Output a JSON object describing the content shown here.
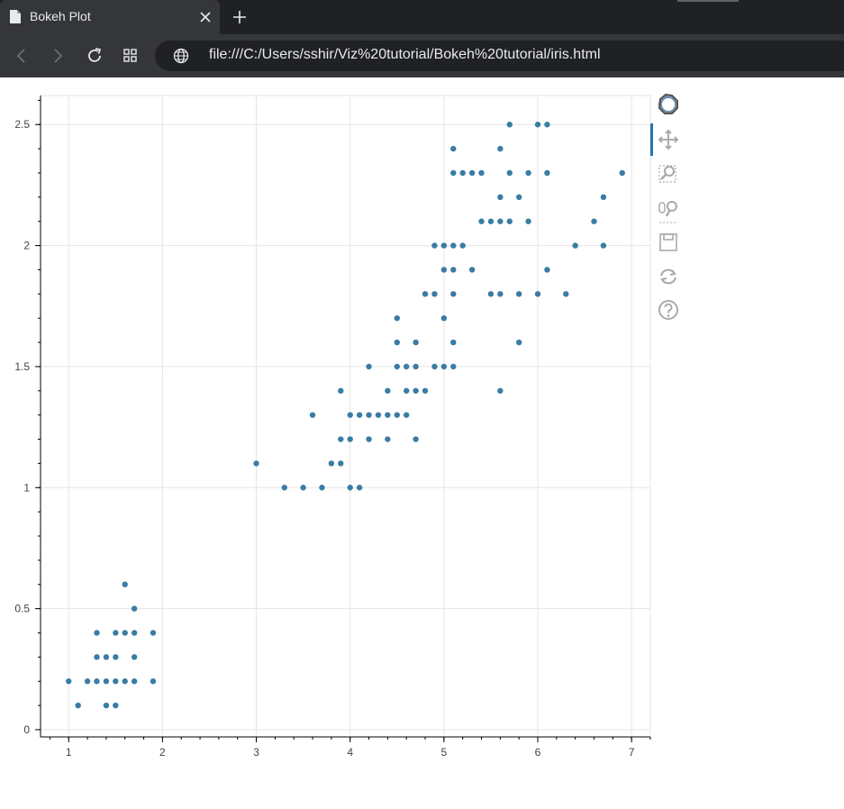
{
  "browser": {
    "tab_title": "Bokeh Plot",
    "url": "file:///C:/Users/sshir/Viz%20tutorial/Bokeh%20tutorial/iris.html",
    "icons": [
      "document-icon",
      "close-icon",
      "plus-icon",
      "back-icon",
      "forward-icon",
      "reload-icon",
      "apps-icon",
      "globe-icon"
    ]
  },
  "plot_toolbar": {
    "tools": [
      "bokeh-logo",
      "pan",
      "box-zoom",
      "wheel-zoom",
      "save",
      "reset",
      "help"
    ],
    "active": "pan",
    "accent": "#1f77b4"
  },
  "chart_data": {
    "type": "scatter",
    "marker_color": "#3a7ca5",
    "xlim": [
      0.7,
      7.2
    ],
    "ylim": [
      -0.03,
      2.62
    ],
    "xticks": [
      1,
      2,
      3,
      4,
      5,
      6,
      7
    ],
    "yticks": [
      0,
      0.5,
      1,
      1.5,
      2,
      2.5
    ],
    "xtick_labels": [
      "1",
      "2",
      "3",
      "4",
      "5",
      "6",
      "7"
    ],
    "ytick_labels": [
      "0",
      "0.5",
      "1",
      "1.5",
      "2",
      "2.5"
    ],
    "grid": true,
    "points": [
      [
        1.0,
        0.2
      ],
      [
        1.1,
        0.1
      ],
      [
        1.2,
        0.2
      ],
      [
        1.3,
        0.2
      ],
      [
        1.3,
        0.3
      ],
      [
        1.3,
        0.4
      ],
      [
        1.4,
        0.1
      ],
      [
        1.4,
        0.2
      ],
      [
        1.4,
        0.3
      ],
      [
        1.5,
        0.1
      ],
      [
        1.5,
        0.2
      ],
      [
        1.5,
        0.3
      ],
      [
        1.5,
        0.4
      ],
      [
        1.6,
        0.2
      ],
      [
        1.6,
        0.4
      ],
      [
        1.6,
        0.6
      ],
      [
        1.7,
        0.2
      ],
      [
        1.7,
        0.3
      ],
      [
        1.7,
        0.4
      ],
      [
        1.7,
        0.5
      ],
      [
        1.9,
        0.2
      ],
      [
        1.9,
        0.4
      ],
      [
        3.0,
        1.1
      ],
      [
        3.3,
        1.0
      ],
      [
        3.5,
        1.0
      ],
      [
        3.6,
        1.3
      ],
      [
        3.7,
        1.0
      ],
      [
        3.8,
        1.1
      ],
      [
        3.9,
        1.1
      ],
      [
        3.9,
        1.2
      ],
      [
        3.9,
        1.4
      ],
      [
        4.0,
        1.0
      ],
      [
        4.0,
        1.2
      ],
      [
        4.0,
        1.3
      ],
      [
        4.1,
        1.0
      ],
      [
        4.1,
        1.3
      ],
      [
        4.2,
        1.2
      ],
      [
        4.2,
        1.3
      ],
      [
        4.2,
        1.5
      ],
      [
        4.3,
        1.3
      ],
      [
        4.4,
        1.2
      ],
      [
        4.4,
        1.3
      ],
      [
        4.4,
        1.4
      ],
      [
        4.5,
        1.3
      ],
      [
        4.5,
        1.5
      ],
      [
        4.5,
        1.6
      ],
      [
        4.5,
        1.7
      ],
      [
        4.6,
        1.3
      ],
      [
        4.6,
        1.4
      ],
      [
        4.6,
        1.5
      ],
      [
        4.7,
        1.2
      ],
      [
        4.7,
        1.4
      ],
      [
        4.7,
        1.5
      ],
      [
        4.7,
        1.6
      ],
      [
        4.8,
        1.4
      ],
      [
        4.8,
        1.8
      ],
      [
        4.9,
        1.5
      ],
      [
        4.9,
        1.8
      ],
      [
        4.9,
        2.0
      ],
      [
        5.0,
        1.5
      ],
      [
        5.0,
        1.7
      ],
      [
        5.0,
        1.9
      ],
      [
        5.0,
        2.0
      ],
      [
        5.1,
        1.5
      ],
      [
        5.1,
        1.6
      ],
      [
        5.1,
        1.8
      ],
      [
        5.1,
        1.9
      ],
      [
        5.1,
        2.0
      ],
      [
        5.1,
        2.3
      ],
      [
        5.1,
        2.4
      ],
      [
        5.2,
        2.0
      ],
      [
        5.2,
        2.3
      ],
      [
        5.3,
        1.9
      ],
      [
        5.3,
        2.3
      ],
      [
        5.4,
        2.1
      ],
      [
        5.4,
        2.3
      ],
      [
        5.5,
        1.8
      ],
      [
        5.5,
        2.1
      ],
      [
        5.6,
        1.4
      ],
      [
        5.6,
        1.8
      ],
      [
        5.6,
        2.1
      ],
      [
        5.6,
        2.2
      ],
      [
        5.6,
        2.4
      ],
      [
        5.7,
        2.1
      ],
      [
        5.7,
        2.3
      ],
      [
        5.7,
        2.5
      ],
      [
        5.8,
        1.6
      ],
      [
        5.8,
        1.8
      ],
      [
        5.8,
        2.2
      ],
      [
        5.9,
        2.1
      ],
      [
        5.9,
        2.3
      ],
      [
        6.0,
        1.8
      ],
      [
        6.0,
        2.5
      ],
      [
        6.1,
        1.9
      ],
      [
        6.1,
        2.3
      ],
      [
        6.1,
        2.5
      ],
      [
        6.3,
        1.8
      ],
      [
        6.4,
        2.0
      ],
      [
        6.6,
        2.1
      ],
      [
        6.7,
        2.0
      ],
      [
        6.7,
        2.2
      ],
      [
        6.9,
        2.3
      ]
    ]
  }
}
